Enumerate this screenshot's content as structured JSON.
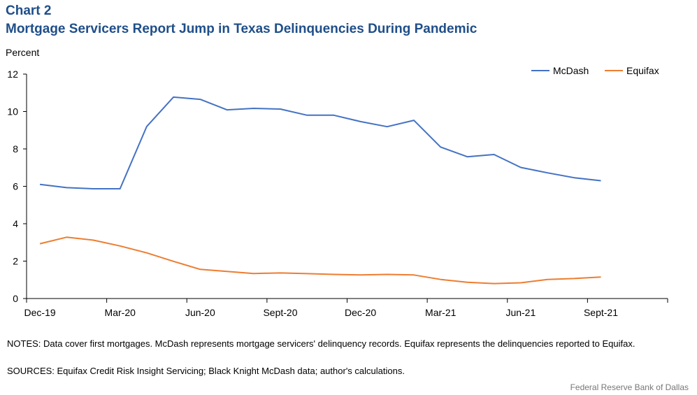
{
  "header": {
    "label": "Chart 2",
    "title": "Mortgage Servicers Report Jump in Texas Delinquencies During Pandemic"
  },
  "footer": {
    "notes": "NOTES: Data cover first mortgages. McDash represents mortgage servicers' delinquency records. Equifax represents the delinquencies reported to Equifax.",
    "sources": "SOURCES: Equifax Credit Risk Insight Servicing; Black Knight McDash data; author's calculations.",
    "credit": "Federal Reserve Bank of Dallas"
  },
  "colors": {
    "mcdash": "#4472c4",
    "equifax": "#ed7d31",
    "axis": "#000000"
  },
  "chart_data": {
    "type": "line",
    "ylabel": "Percent",
    "ylim": [
      0,
      12
    ],
    "yticks": [
      0,
      2,
      4,
      6,
      8,
      10,
      12
    ],
    "grid": false,
    "legend": "top-right",
    "x_labels": [
      "Dec-19",
      "Mar-20",
      "Jun-20",
      "Sept-20",
      "Dec-20",
      "Mar-21",
      "Jun-21",
      "Sept-21"
    ],
    "x": [
      "Dec-19",
      "Jan-20",
      "Feb-20",
      "Mar-20",
      "Apr-20",
      "May-20",
      "Jun-20",
      "Jul-20",
      "Aug-20",
      "Sept-20",
      "Oct-20",
      "Nov-20",
      "Dec-20",
      "Jan-21",
      "Feb-21",
      "Mar-21",
      "Apr-21",
      "May-21",
      "Jun-21",
      "Jul-21",
      "Aug-21",
      "Sept-21"
    ],
    "series": [
      {
        "name": "McDash",
        "values": [
          6.1,
          5.93,
          5.87,
          5.87,
          9.2,
          10.77,
          10.65,
          10.09,
          10.17,
          10.13,
          9.8,
          9.8,
          9.46,
          9.19,
          9.53,
          8.1,
          7.58,
          7.7,
          7.01,
          6.72,
          6.46,
          6.3
        ]
      },
      {
        "name": "Equifax",
        "values": [
          2.93,
          3.28,
          3.12,
          2.81,
          2.44,
          1.99,
          1.56,
          1.45,
          1.34,
          1.37,
          1.33,
          1.29,
          1.26,
          1.29,
          1.26,
          1.02,
          0.87,
          0.8,
          0.84,
          1.02,
          1.07,
          1.15
        ]
      }
    ]
  }
}
